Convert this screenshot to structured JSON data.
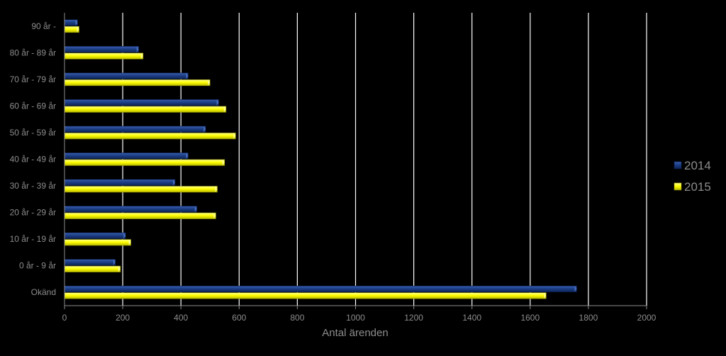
{
  "chart_data": {
    "type": "bar",
    "orientation": "horizontal",
    "categories": [
      "90 år -",
      "80 år - 89 år",
      "70 år - 79 år",
      "60 år - 69 år",
      "50 år - 59 år",
      "40 år - 49 år",
      "30 år - 39 år",
      "20 år - 29 år",
      "10 år - 19 år",
      "0 år - 9 år",
      "Okänd"
    ],
    "series": [
      {
        "name": "2014",
        "color": "#1a3a7a",
        "values": [
          45,
          255,
          425,
          530,
          485,
          425,
          380,
          455,
          210,
          175,
          1760
        ]
      },
      {
        "name": "2015",
        "color": "#ffff00",
        "values": [
          50,
          270,
          500,
          555,
          588,
          550,
          525,
          520,
          228,
          192,
          1655
        ]
      }
    ],
    "xlim": [
      0,
      2000
    ],
    "xticks": [
      0,
      200,
      400,
      600,
      800,
      1000,
      1200,
      1400,
      1600,
      1800,
      2000
    ],
    "xlabel": "Antal ärenden",
    "ylabel": "",
    "title": "",
    "grid": true,
    "legend_position": "right",
    "colors": {
      "background": "#000000",
      "grid": "#ffffff",
      "tick_text": "#8c8c8c",
      "axis": "#8c8c8c",
      "legend_text": "#8c8c8c"
    }
  }
}
